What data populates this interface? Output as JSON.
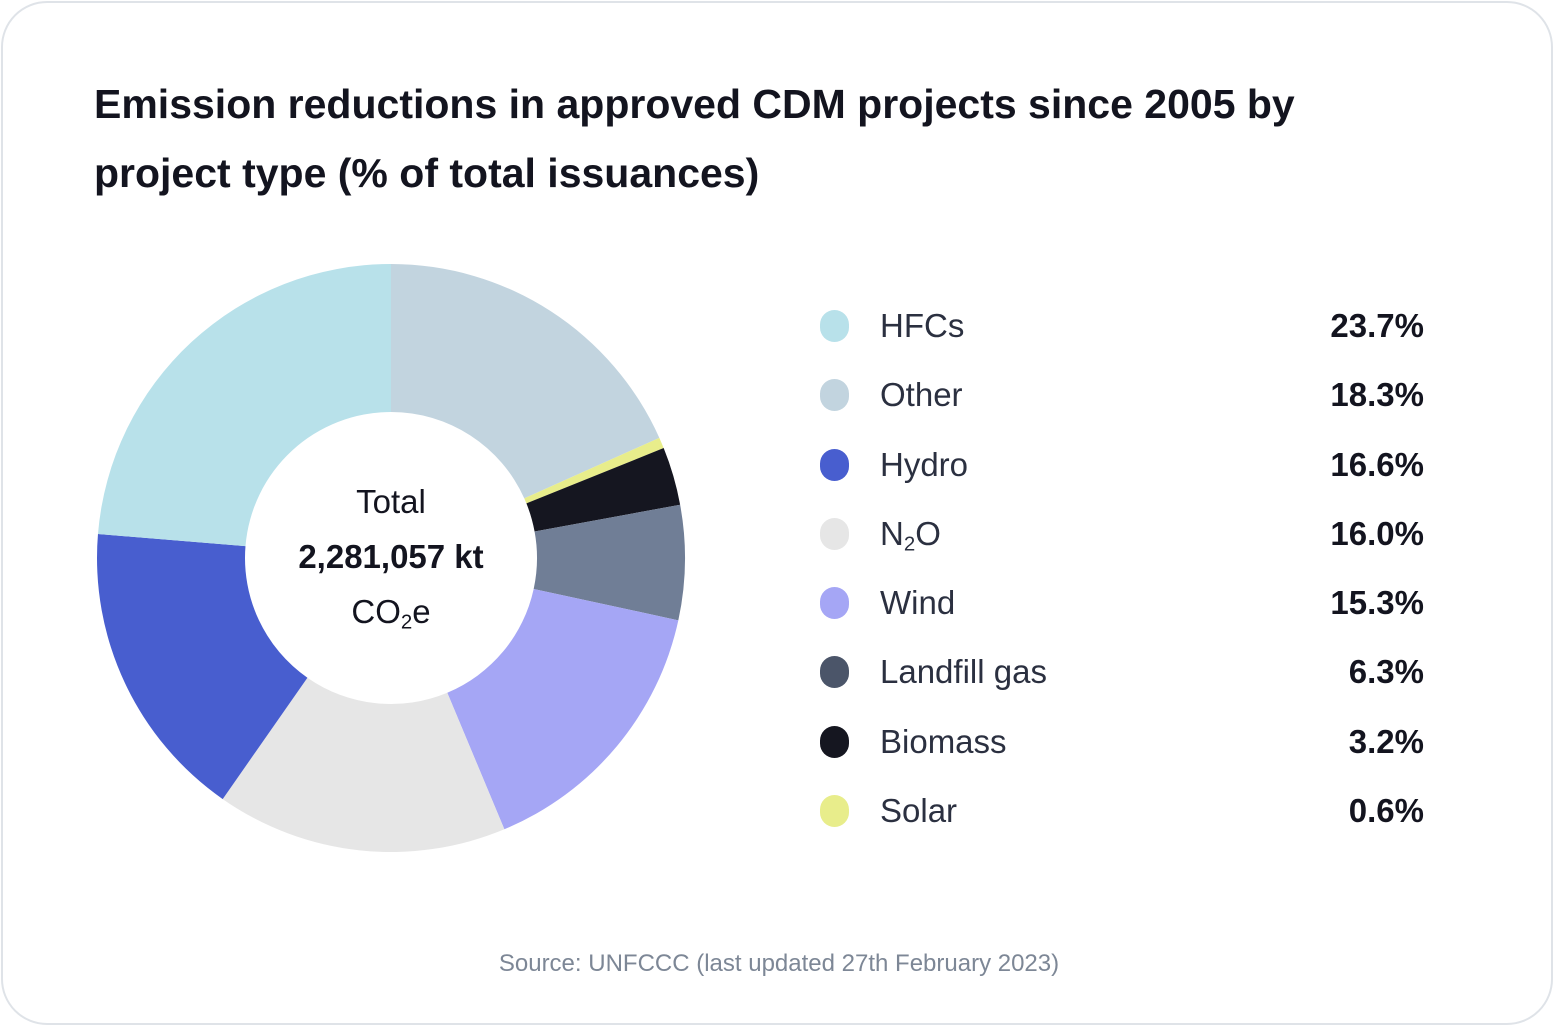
{
  "title": "Emission reductions in approved CDM projects since 2005 by project type (% of total issuances)",
  "center": {
    "label": "Total",
    "value": "2,281,057 kt",
    "unit_base": "CO",
    "unit_sub": "2",
    "unit_suffix": "e"
  },
  "source": "Source: UNFCCC (last updated 27th February 2023)",
  "chart_data": {
    "type": "pie",
    "title": "Emission reductions in approved CDM projects since 2005 by project type (% of total issuances)",
    "subtype": "donut",
    "center_text": "Total 2,281,057 kt CO2e",
    "categories": [
      "HFCs",
      "Other",
      "Hydro",
      "N2O",
      "Wind",
      "Landfill gas",
      "Biomass",
      "Solar"
    ],
    "values": [
      23.7,
      18.3,
      16.6,
      16.0,
      15.3,
      6.3,
      3.2,
      0.6
    ],
    "value_labels": [
      "23.7%",
      "18.3%",
      "16.6%",
      "16.0%",
      "15.3%",
      "6.3%",
      "3.2%",
      "0.6%"
    ],
    "colors": [
      "#b8e1ea",
      "#c2d4df",
      "#485ecf",
      "#e6e6e6",
      "#a5a6f5",
      "#707e96",
      "#151620",
      "#e8ed8b"
    ],
    "legend_colors": [
      "#b8e1ea",
      "#c2d4df",
      "#485ecf",
      "#e6e6e6",
      "#a5a6f5",
      "#4b5569",
      "#151620",
      "#e8ed8b"
    ],
    "clockwise_slice_order_from_top": [
      "Other",
      "Solar",
      "Biomass",
      "Landfill gas",
      "Wind",
      "N2O",
      "Hydro",
      "HFCs"
    ],
    "legend_placement": "right",
    "unit": "%"
  },
  "legend": {
    "items": [
      {
        "name": "HFCs",
        "label_base": "HFCs",
        "label_sub": "",
        "label_suffix": "",
        "value": "23.7%"
      },
      {
        "name": "Other",
        "label_base": "Other",
        "label_sub": "",
        "label_suffix": "",
        "value": "18.3%"
      },
      {
        "name": "Hydro",
        "label_base": "Hydro",
        "label_sub": "",
        "label_suffix": "",
        "value": "16.6%"
      },
      {
        "name": "N2O",
        "label_base": "N",
        "label_sub": "2",
        "label_suffix": "O",
        "value": "16.0%"
      },
      {
        "name": "Wind",
        "label_base": "Wind",
        "label_sub": "",
        "label_suffix": "",
        "value": "15.3%"
      },
      {
        "name": "Landfill gas",
        "label_base": "Landfill gas",
        "label_sub": "",
        "label_suffix": "",
        "value": "6.3%"
      },
      {
        "name": "Biomass",
        "label_base": "Biomass",
        "label_sub": "",
        "label_suffix": "",
        "value": "3.2%"
      },
      {
        "name": "Solar",
        "label_base": "Solar",
        "label_sub": "",
        "label_suffix": "",
        "value": "0.6%"
      }
    ]
  }
}
